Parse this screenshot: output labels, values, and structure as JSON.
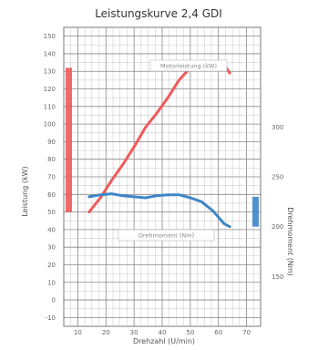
{
  "chart_data": {
    "type": "line",
    "title": "Leistungskurve 2,4 GDI",
    "xlabel": "Drehzahl (U/min)",
    "ylabel_left": "Leistung (kW)",
    "ylabel_right": "Drehmoment (Nm)",
    "x_ticks": [
      "10",
      "20",
      "30",
      "40",
      "50",
      "60",
      "70"
    ],
    "y_left_ticks": [
      "-10",
      "0",
      "10",
      "20",
      "30",
      "40",
      "50",
      "60",
      "70",
      "80",
      "90",
      "100",
      "110",
      "120",
      "130",
      "140",
      "150"
    ],
    "y_right_ticks": [
      "150",
      "200",
      "250",
      "300"
    ],
    "xlim": [
      5,
      75
    ],
    "ylim_left": [
      -15,
      155
    ],
    "ylim_right": [
      100,
      400
    ],
    "series": [
      {
        "name": "Motorleistung (kW)",
        "color": "#f05a5a",
        "axis": "left",
        "x": [
          14,
          18,
          22,
          26,
          30,
          34,
          38,
          42,
          46,
          50,
          54,
          58,
          62,
          64
        ],
        "y": [
          50,
          58,
          68,
          77,
          87,
          98,
          106,
          115,
          125,
          132,
          133,
          133,
          134,
          129
        ]
      },
      {
        "name": "Drehmoment (Nm)",
        "color": "#3f86c6",
        "axis": "right",
        "x": [
          14,
          18,
          22,
          26,
          30,
          34,
          38,
          42,
          46,
          50,
          54,
          58,
          62,
          64
        ],
        "y": [
          230,
          232,
          233,
          231,
          230,
          229,
          231,
          232,
          232,
          229,
          225,
          216,
          203,
          200
        ]
      }
    ],
    "left_band": {
      "color": "#f05a5a",
      "range": [
        50,
        132
      ]
    },
    "right_band": {
      "color": "#3f86c6",
      "range": [
        200,
        230
      ]
    },
    "grid": true,
    "legend": "inline"
  }
}
